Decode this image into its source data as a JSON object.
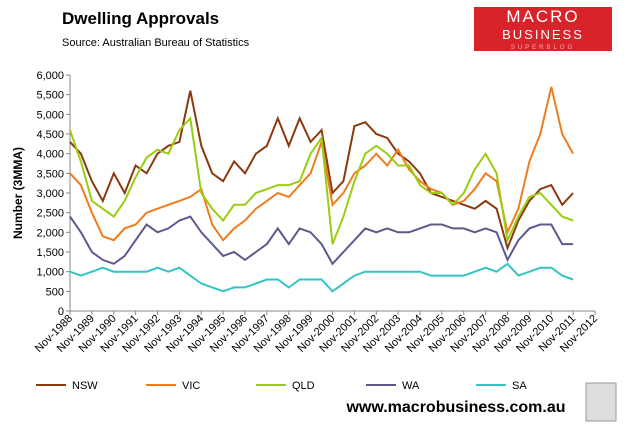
{
  "chart_data": {
    "type": "line",
    "title": "Dwelling Approvals",
    "subtitle": "Source:   Australian Bureau of Statistics",
    "y_label": "Number (3MMA)",
    "categories": [
      "Nov-1988",
      null,
      "Nov-1989",
      null,
      "Nov-1990",
      null,
      "Nov-1991",
      null,
      "Nov-1992",
      null,
      "Nov-1993",
      null,
      "Nov-1994",
      null,
      "Nov-1995",
      null,
      "Nov-1996",
      null,
      "Nov-1997",
      null,
      "Nov-1998",
      null,
      "Nov-1999",
      null,
      "Nov-2000",
      null,
      "Nov-2001",
      null,
      "Nov-2002",
      null,
      "Nov-2003",
      null,
      "Nov-2004",
      null,
      "Nov-2005",
      null,
      "Nov-2006",
      null,
      "Nov-2007",
      null,
      "Nov-2008",
      null,
      "Nov-2009",
      null,
      "Nov-2010",
      null,
      "Nov-2011",
      null,
      "Nov-2012"
    ],
    "series": [
      {
        "name": "NSW",
        "color": "#8b3a0f",
        "values": [
          4300,
          4000,
          3300,
          2800,
          3500,
          3000,
          3700,
          3500,
          4000,
          4200,
          4300,
          5600,
          4200,
          3500,
          3300,
          3800,
          3500,
          4000,
          4200,
          4900,
          4200,
          4900,
          4300,
          4600,
          3000,
          3300,
          4700,
          4800,
          4500,
          4400,
          4000,
          3800,
          3500,
          3000,
          2900,
          2800,
          2700,
          2600,
          2800,
          2600,
          1600,
          2300,
          2800,
          3100,
          3200,
          2700,
          3000,
          null,
          null
        ]
      },
      {
        "name": "VIC",
        "color": "#f07c1e",
        "values": [
          3500,
          3200,
          2500,
          1900,
          1800,
          2100,
          2200,
          2500,
          2600,
          2700,
          2800,
          2900,
          3100,
          2200,
          1800,
          2100,
          2300,
          2600,
          2800,
          3000,
          2900,
          3200,
          3500,
          4300,
          2700,
          3000,
          3500,
          3700,
          4000,
          3700,
          4100,
          3600,
          3300,
          3100,
          3000,
          2700,
          2800,
          3100,
          3500,
          3300,
          2000,
          2600,
          3800,
          4500,
          5700,
          4500,
          4000,
          null,
          null
        ]
      },
      {
        "name": "QLD",
        "color": "#9acd12",
        "values": [
          4600,
          3800,
          2800,
          2600,
          2400,
          2800,
          3400,
          3900,
          4100,
          4000,
          4600,
          4900,
          3000,
          2600,
          2300,
          2700,
          2700,
          3000,
          3100,
          3200,
          3200,
          3300,
          4000,
          4400,
          1700,
          2400,
          3300,
          4000,
          4200,
          4000,
          3700,
          3700,
          3200,
          3000,
          3000,
          2700,
          3000,
          3600,
          4000,
          3500,
          1800,
          2400,
          2900,
          3000,
          2700,
          2400,
          2300,
          null,
          null
        ]
      },
      {
        "name": "WA",
        "color": "#5c5a8c",
        "values": [
          2400,
          2000,
          1500,
          1300,
          1200,
          1400,
          1800,
          2200,
          2000,
          2100,
          2300,
          2400,
          2000,
          1700,
          1400,
          1500,
          1300,
          1500,
          1700,
          2100,
          1700,
          2100,
          2000,
          1700,
          1200,
          1500,
          1800,
          2100,
          2000,
          2100,
          2000,
          2000,
          2100,
          2200,
          2200,
          2100,
          2100,
          2000,
          2100,
          2000,
          1300,
          1800,
          2100,
          2200,
          2200,
          1700,
          1700,
          null,
          null
        ]
      },
      {
        "name": "SA",
        "color": "#35c4c4",
        "values": [
          1000,
          900,
          1000,
          1100,
          1000,
          1000,
          1000,
          1000,
          1100,
          1000,
          1100,
          900,
          700,
          600,
          500,
          600,
          600,
          700,
          800,
          800,
          600,
          800,
          800,
          800,
          500,
          700,
          900,
          1000,
          1000,
          1000,
          1000,
          1000,
          1000,
          900,
          900,
          900,
          900,
          1000,
          1100,
          1000,
          1200,
          900,
          1000,
          1100,
          1100,
          900,
          800,
          null,
          null
        ]
      }
    ],
    "ylim": [
      0,
      6000
    ],
    "yticks": [
      0,
      500,
      {
        "value": 1000,
        "label": "1,000"
      },
      {
        "value": 1500,
        "label": "1,500"
      },
      {
        "value": 2000,
        "label": "2,000"
      },
      {
        "value": 2500,
        "label": "2,500"
      },
      {
        "value": 3000,
        "label": "3,000"
      },
      {
        "value": 3500,
        "label": "3,500"
      },
      {
        "value": 4000,
        "label": "4,000"
      },
      {
        "value": 4500,
        "label": "4,500"
      },
      {
        "value": 5000,
        "label": "5,000"
      },
      {
        "value": 5500,
        "label": "5,500"
      },
      {
        "value": 6000,
        "label": "6,000"
      }
    ],
    "grid": false,
    "legend": "bottom"
  },
  "logo": {
    "line1": "MACRO",
    "line2": "BUSINESS",
    "line3": "SUPERBLOG"
  },
  "website": "www.macrobusiness.com.au"
}
